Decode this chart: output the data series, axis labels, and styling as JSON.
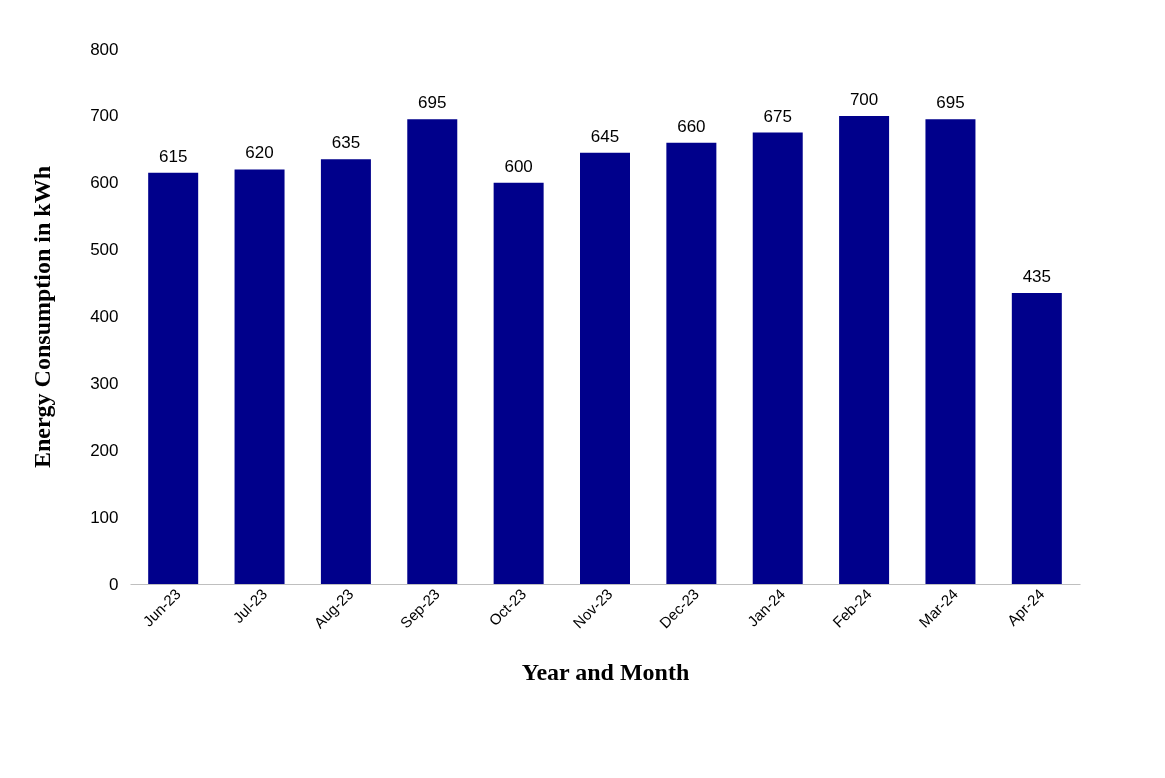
{
  "chart_data": {
    "type": "bar",
    "xlabel": "Year and Month",
    "ylabel": "Energy Consumption in kWh",
    "categories": [
      "Jun-23",
      "Jul-23",
      "Aug-23",
      "Sep-23",
      "Oct-23",
      "Nov-23",
      "Dec-23",
      "Jan-24",
      "Feb-24",
      "Mar-24",
      "Apr-24"
    ],
    "values": [
      615,
      620,
      635,
      695,
      600,
      645,
      660,
      675,
      700,
      695,
      435
    ],
    "color": "#00008b",
    "ylim": [
      0,
      800
    ],
    "yticks": [
      0,
      100,
      200,
      300,
      400,
      500,
      600,
      700,
      800
    ],
    "grid": false,
    "data_labels": true
  }
}
